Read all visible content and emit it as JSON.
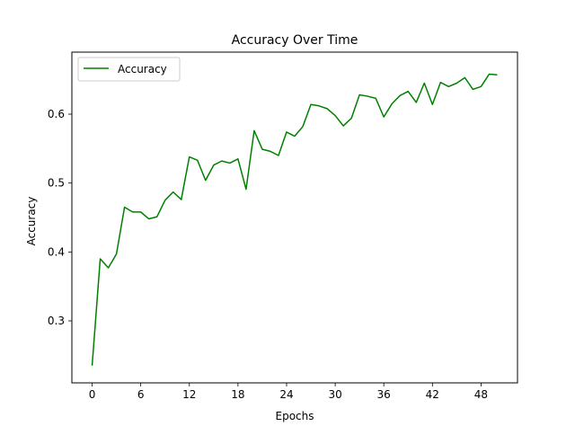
{
  "chart_data": {
    "type": "line",
    "title": "Accuracy Over Time",
    "xlabel": "Epochs",
    "ylabel": "Accuracy",
    "xlim": [
      -2.5,
      52.5
    ],
    "ylim": [
      0.21,
      0.69
    ],
    "x_ticks": [
      0,
      6,
      12,
      18,
      24,
      30,
      36,
      42,
      48
    ],
    "y_ticks": [
      0.3,
      0.4,
      0.5,
      0.6
    ],
    "x_tick_labels": [
      "0",
      "6",
      "12",
      "18",
      "24",
      "30",
      "36",
      "42",
      "48"
    ],
    "y_tick_labels": [
      "0.3",
      "0.4",
      "0.5",
      "0.6"
    ],
    "grid": false,
    "legend": {
      "position": "top-left"
    },
    "series": [
      {
        "name": "Accuracy",
        "color": "#008000",
        "x": [
          0,
          1,
          2,
          3,
          4,
          5,
          6,
          7,
          8,
          9,
          10,
          11,
          12,
          13,
          14,
          15,
          16,
          17,
          18,
          19,
          20,
          21,
          22,
          23,
          24,
          25,
          26,
          27,
          28,
          29,
          30,
          31,
          32,
          33,
          34,
          35,
          36,
          37,
          38,
          39,
          40,
          41,
          42,
          43,
          44,
          45,
          46,
          47,
          48,
          49,
          50
        ],
        "y": [
          0.235,
          0.39,
          0.377,
          0.397,
          0.465,
          0.458,
          0.458,
          0.448,
          0.451,
          0.475,
          0.487,
          0.476,
          0.538,
          0.533,
          0.504,
          0.526,
          0.532,
          0.529,
          0.535,
          0.491,
          0.576,
          0.549,
          0.546,
          0.54,
          0.574,
          0.568,
          0.582,
          0.614,
          0.612,
          0.608,
          0.598,
          0.583,
          0.594,
          0.628,
          0.626,
          0.623,
          0.596,
          0.615,
          0.627,
          0.633,
          0.617,
          0.645,
          0.614,
          0.646,
          0.64,
          0.645,
          0.653,
          0.636,
          0.64,
          0.658,
          0.657
        ]
      }
    ]
  }
}
